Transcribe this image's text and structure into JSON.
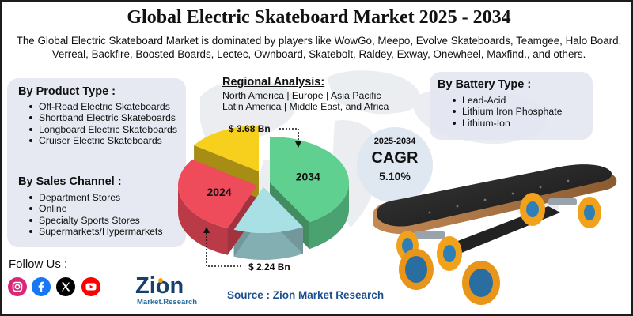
{
  "title": "Global Electric Skateboard Market 2025 - 2034",
  "subtitle": "The Global Electric Skateboard Market is dominated by players like WowGo, Meepo, Evolve Skateboards, Teamgee, Halo Board, Verreal, Backfire, Boosted Boards, Lectec, Ownboard, Skatebolt, Raldey, Exway, Onewheel, Maxfind., and others.",
  "product_type": {
    "heading": "By Product Type :",
    "items": [
      "Off-Road Electric Skateboards",
      "Shortband Electric Skateboards",
      "Longboard Electric Skateboards",
      "Cruiser Electric Skateboards"
    ]
  },
  "sales_channel": {
    "heading": "By Sales Channel :",
    "items": [
      "Department Stores",
      "Online",
      "Specialty Sports Stores",
      "Supermarkets/Hypermarkets"
    ]
  },
  "battery_type": {
    "heading": "By Battery Type :",
    "items": [
      "Lead-Acid",
      "Lithium Iron Phosphate",
      "Lithium-Ion"
    ]
  },
  "regional": {
    "heading": "Regional Analysis:",
    "line1": "North America | Europe | Asia Pacific",
    "line2": "Latin America | Middle East, and Africa"
  },
  "cagr": {
    "period": "2025-2034",
    "label": "CAGR",
    "value": "5.10%"
  },
  "chart_data": {
    "type": "pie",
    "values": [
      {
        "label": "2034",
        "value": 3.68,
        "display": "$ 3.68 Bn",
        "color": "#5fd08f"
      },
      {
        "label": "2024",
        "value": 2.24,
        "display": "$ 2.24 Bn",
        "color": "#ee4b5b"
      }
    ],
    "decorative_slices": [
      {
        "color": "#f7cf1d"
      },
      {
        "color": "#a8e0e6"
      }
    ]
  },
  "follow": {
    "label": "Follow Us :",
    "icons": [
      "instagram-icon",
      "facebook-icon",
      "x-icon",
      "youtube-icon"
    ],
    "colors": {
      "instagram": "#d62976",
      "facebook": "#1877f2",
      "x": "#000000",
      "youtube": "#ff0000"
    }
  },
  "logo": {
    "name": "Zion",
    "sub": "Market.Research"
  },
  "source": "Source : Zion Market Research"
}
